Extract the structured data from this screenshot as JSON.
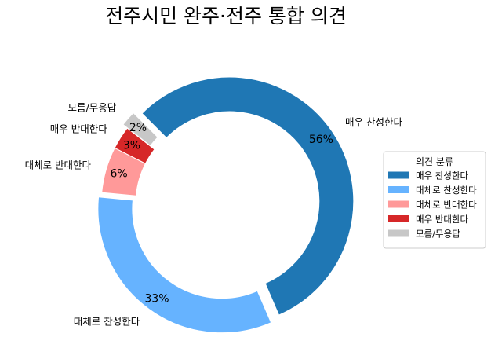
{
  "chart_data": {
    "type": "pie",
    "title": "전주시민 완주·전주 통합 의견",
    "categories": [
      "매우 찬성한다",
      "대체로 찬성한다",
      "대체로 반대한다",
      "매우 반대한다",
      "모름/무응답"
    ],
    "values": [
      56,
      33,
      6,
      3,
      2
    ],
    "value_labels": [
      "56%",
      "33%",
      "6%",
      "3%",
      "2%"
    ],
    "colors": [
      "#1f77b4",
      "#66b3ff",
      "#ff9999",
      "#d62728",
      "#c7c7c7"
    ],
    "start_angle_deg": 135,
    "direction": "clockwise",
    "donut": true,
    "exploded": [
      true,
      true,
      false,
      false,
      true
    ],
    "legend": {
      "title": "의견 분류",
      "placement": "right",
      "entries": [
        "매우 찬성한다",
        "대체로 찬성한다",
        "대체로 반대한다",
        "매우 반대한다",
        "모름/무응답"
      ]
    }
  }
}
